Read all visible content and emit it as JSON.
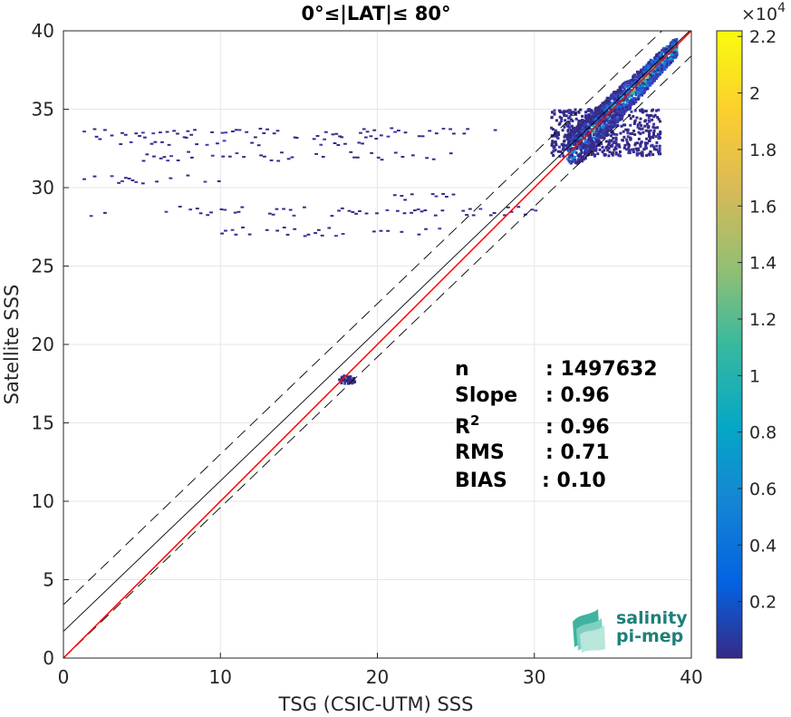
{
  "chart_data": {
    "type": "heatmap",
    "title": "0°≤|LAT|≤ 80°",
    "xlabel": "TSG (CSIC-UTM) SSS",
    "ylabel": "Satellite SSS",
    "xlim": [
      0,
      40
    ],
    "ylim": [
      0,
      40
    ],
    "xticks": [
      "0",
      "10",
      "20",
      "30",
      "40"
    ],
    "yticks": [
      "0",
      "5",
      "10",
      "15",
      "20",
      "25",
      "30",
      "35",
      "40"
    ],
    "grid": true,
    "colorbar": {
      "range": [
        0,
        22200
      ],
      "exponent_label": "×10",
      "exponent_power": "4",
      "ticks": [
        "0.2",
        "0.4",
        "0.6",
        "0.8",
        "1",
        "1.2",
        "1.4",
        "1.6",
        "1.8",
        "2",
        "2.2"
      ],
      "tick_values": [
        0.2,
        0.4,
        0.6,
        0.8,
        1.0,
        1.2,
        1.4,
        1.6,
        1.8,
        2.0,
        2.2
      ],
      "colormap": "parula"
    },
    "lines": {
      "identity": {
        "slope": 1,
        "intercept": 0,
        "color": "#ff0000"
      },
      "regression": {
        "slope": 0.96,
        "intercept": 1.7,
        "color": "#000000"
      },
      "upper_bound": {
        "slope": 0.96,
        "intercept": 3.4,
        "color": "#000000",
        "style": "dashed"
      },
      "lower_bound": {
        "slope": 0.96,
        "intercept": 0.0,
        "color": "#000000",
        "style": "dashed"
      }
    },
    "density_clusters": [
      {
        "x": [
          32,
          39
        ],
        "y": [
          31.5,
          39.5
        ],
        "peak": 0.35
      },
      {
        "x": [
          31,
          38
        ],
        "y": [
          32,
          35
        ],
        "peak": 0.12
      },
      {
        "x": [
          17.5,
          18.5
        ],
        "y": [
          17.5,
          18
        ],
        "peak": 0.15
      }
    ],
    "sparse_streaks": [
      {
        "x": [
          1,
          28
        ],
        "y": 33.5
      },
      {
        "x": [
          2,
          20
        ],
        "y": 33
      },
      {
        "x": [
          5,
          25
        ],
        "y": 32
      },
      {
        "x": [
          1,
          10
        ],
        "y": 30.5
      },
      {
        "x": [
          6,
          30
        ],
        "y": 28.5
      },
      {
        "x": [
          10,
          24
        ],
        "y": 27.2
      },
      {
        "x": [
          21,
          25
        ],
        "y": 29.5
      },
      {
        "x": [
          1,
          3
        ],
        "y": 28.3
      }
    ],
    "stats": {
      "n_label": "n",
      "n_value": ": 1497632",
      "slope_label": "Slope",
      "slope_value": ": 0.96",
      "r2_label": "R",
      "r2_sup": "2",
      "r2_value": ": 0.96",
      "rms_label": "RMS",
      "rms_value": ": 0.71",
      "bias_label": "BIAS",
      "bias_value": ": 0.10"
    }
  },
  "logo": {
    "line1": "salinity",
    "line2": "pi-mep"
  }
}
